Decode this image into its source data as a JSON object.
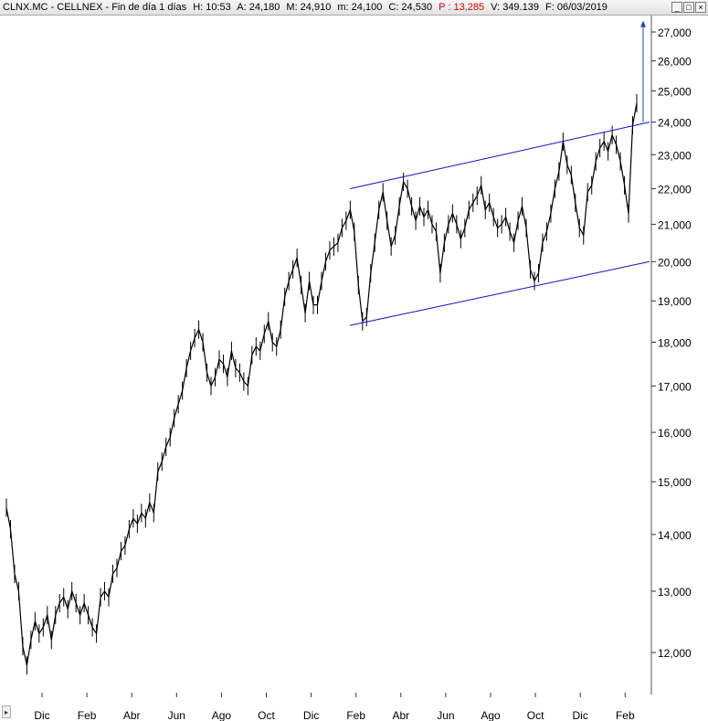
{
  "header": {
    "symbol": "CLNX.MC - CELLNEX - Fin de día 1 días",
    "hora": "H: 10:53",
    "apertura": "A: 24,180",
    "maximo": "M: 24,910",
    "minimo": "m: 24,100",
    "cierre": "C: 24,530",
    "porcentaje": "P : 13,285",
    "volumen": "V: 349.139",
    "fecha": "F: 06/03/2019"
  },
  "window_buttons": [
    "_",
    "□",
    "×"
  ],
  "colors": {
    "price": "#000000",
    "channel": "#1010c8",
    "target_arrow": "#1f4aa0",
    "positive_pct": "#e00000"
  },
  "chart_data": {
    "type": "line",
    "y_scale": "log",
    "ylim": [
      11.6,
      27.6
    ],
    "y_ticks": [
      "12,000",
      "13,000",
      "14,000",
      "15,000",
      "16,000",
      "17,000",
      "18,000",
      "19,000",
      "20,000",
      "21,000",
      "22,000",
      "23,000",
      "24,000",
      "25,000",
      "26,000",
      "27,000"
    ],
    "x_ticks": [
      "Dic",
      "Feb",
      "Abr",
      "Jun",
      "Ago",
      "Oct",
      "Dic",
      "Feb",
      "Abr",
      "Jun",
      "Ago",
      "Oct",
      "Dic",
      "Feb"
    ],
    "series": [
      {
        "values": [
          14.5,
          14.1,
          13.3,
          13.0,
          12.1,
          11.8,
          12.2,
          12.5,
          12.3,
          12.4,
          12.6,
          12.2,
          12.6,
          12.8,
          12.9,
          12.7,
          13.0,
          12.8,
          12.6,
          12.8,
          12.6,
          12.4,
          12.3,
          12.9,
          13.0,
          12.9,
          13.3,
          13.4,
          13.7,
          13.8,
          14.1,
          14.3,
          14.2,
          14.4,
          14.3,
          14.6,
          14.4,
          15.2,
          15.4,
          15.7,
          15.9,
          16.3,
          16.6,
          16.9,
          17.4,
          17.8,
          18.1,
          18.3,
          18.0,
          17.3,
          17.0,
          17.2,
          17.6,
          17.5,
          17.2,
          17.8,
          17.4,
          17.3,
          17.1,
          17.0,
          17.7,
          17.9,
          17.8,
          18.2,
          18.5,
          18.0,
          17.9,
          18.3,
          19.1,
          19.5,
          19.8,
          20.1,
          19.4,
          18.7,
          19.5,
          18.9,
          18.9,
          19.5,
          20.0,
          20.3,
          20.4,
          20.5,
          20.9,
          21.1,
          21.4,
          20.8,
          19.4,
          18.5,
          18.6,
          19.7,
          20.5,
          21.4,
          21.9,
          21.1,
          20.4,
          20.7,
          21.5,
          22.2,
          22.0,
          21.5,
          21.1,
          21.5,
          21.2,
          21.4,
          21.0,
          20.8,
          19.7,
          20.5,
          21.0,
          21.3,
          21.0,
          20.6,
          20.9,
          21.4,
          21.6,
          21.8,
          22.1,
          21.4,
          21.6,
          21.2,
          20.9,
          21.0,
          21.2,
          20.8,
          20.5,
          21.1,
          21.5,
          20.9,
          19.8,
          19.5,
          19.7,
          20.5,
          20.8,
          21.3,
          22.0,
          22.5,
          23.4,
          22.7,
          22.4,
          21.6,
          20.9,
          20.7,
          21.9,
          22.1,
          22.8,
          23.2,
          23.4,
          23.1,
          23.6,
          23.3,
          22.8,
          22.1,
          21.3,
          23.9,
          24.6
        ]
      }
    ],
    "channel": {
      "upper": [
        22.0,
        24.0
      ],
      "lower": [
        18.4,
        20.0
      ]
    },
    "target_arrow": {
      "from": 24.0,
      "to": 27.4
    }
  }
}
